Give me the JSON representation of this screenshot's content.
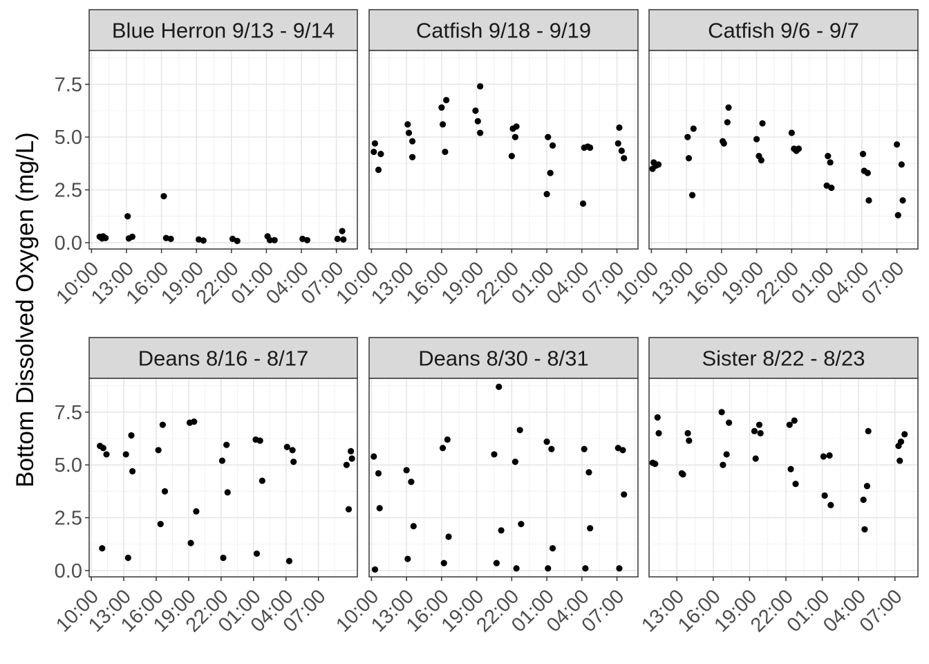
{
  "ylabel": "Bottom Dissolved Oxygen (mg/L)",
  "chart_data": [
    {
      "type": "scatter",
      "title": "Blue Herron 9/13 - 9/14",
      "xlabel": "",
      "ylabel": "Bottom Dissolved Oxygen (mg/L)",
      "x_ticks": [
        "10:00",
        "13:00",
        "16:00",
        "19:00",
        "22:00",
        "01:00",
        "04:00",
        "07:00"
      ],
      "x_range_hours": [
        9.8,
        32.8
      ],
      "y_ticks": [
        "0.0",
        "2.5",
        "5.0",
        "7.5"
      ],
      "ylim": [
        -0.3,
        9.1
      ],
      "grid": true,
      "points": [
        {
          "x": 10.7,
          "y": 0.28
        },
        {
          "x": 10.9,
          "y": 0.2
        },
        {
          "x": 11.0,
          "y": 0.3
        },
        {
          "x": 11.2,
          "y": 0.22
        },
        {
          "x": 13.1,
          "y": 1.25
        },
        {
          "x": 13.2,
          "y": 0.2
        },
        {
          "x": 13.5,
          "y": 0.28
        },
        {
          "x": 16.2,
          "y": 2.2
        },
        {
          "x": 16.4,
          "y": 0.22
        },
        {
          "x": 16.8,
          "y": 0.18
        },
        {
          "x": 19.2,
          "y": 0.15
        },
        {
          "x": 19.6,
          "y": 0.1
        },
        {
          "x": 22.1,
          "y": 0.18
        },
        {
          "x": 22.5,
          "y": 0.08
        },
        {
          "x": 25.1,
          "y": 0.3
        },
        {
          "x": 25.3,
          "y": 0.12
        },
        {
          "x": 25.7,
          "y": 0.12
        },
        {
          "x": 28.1,
          "y": 0.18
        },
        {
          "x": 28.5,
          "y": 0.12
        },
        {
          "x": 31.1,
          "y": 0.18
        },
        {
          "x": 31.5,
          "y": 0.55
        },
        {
          "x": 31.6,
          "y": 0.15
        }
      ]
    },
    {
      "type": "scatter",
      "title": "Catfish 9/18 - 9/19",
      "xlabel": "",
      "ylabel": "",
      "x_ticks": [
        "10:00",
        "13:00",
        "16:00",
        "19:00",
        "22:00",
        "01:00",
        "04:00",
        "07:00"
      ],
      "x_range_hours": [
        9.8,
        32.8
      ],
      "y_ticks": [
        "0.0",
        "2.5",
        "5.0",
        "7.5"
      ],
      "ylim": [
        -0.3,
        9.1
      ],
      "grid": true,
      "points": [
        {
          "x": 10.2,
          "y": 4.3
        },
        {
          "x": 10.3,
          "y": 4.7
        },
        {
          "x": 10.6,
          "y": 3.45
        },
        {
          "x": 10.8,
          "y": 4.2
        },
        {
          "x": 13.1,
          "y": 5.6
        },
        {
          "x": 13.2,
          "y": 5.2
        },
        {
          "x": 13.5,
          "y": 4.8
        },
        {
          "x": 13.5,
          "y": 4.05
        },
        {
          "x": 16.0,
          "y": 6.4
        },
        {
          "x": 16.1,
          "y": 5.6
        },
        {
          "x": 16.3,
          "y": 4.3
        },
        {
          "x": 16.4,
          "y": 6.75
        },
        {
          "x": 18.9,
          "y": 6.25
        },
        {
          "x": 19.1,
          "y": 5.75
        },
        {
          "x": 19.3,
          "y": 7.4
        },
        {
          "x": 19.3,
          "y": 5.2
        },
        {
          "x": 22.0,
          "y": 4.1
        },
        {
          "x": 22.1,
          "y": 5.4
        },
        {
          "x": 22.3,
          "y": 5.0
        },
        {
          "x": 22.4,
          "y": 5.5
        },
        {
          "x": 25.0,
          "y": 2.3
        },
        {
          "x": 25.1,
          "y": 5.0
        },
        {
          "x": 25.3,
          "y": 3.3
        },
        {
          "x": 25.5,
          "y": 4.6
        },
        {
          "x": 28.1,
          "y": 1.85
        },
        {
          "x": 28.2,
          "y": 4.5
        },
        {
          "x": 28.5,
          "y": 4.55
        },
        {
          "x": 28.7,
          "y": 4.5
        },
        {
          "x": 31.1,
          "y": 4.7
        },
        {
          "x": 31.2,
          "y": 5.45
        },
        {
          "x": 31.4,
          "y": 4.35
        },
        {
          "x": 31.6,
          "y": 4.0
        }
      ]
    },
    {
      "type": "scatter",
      "title": "Catfish 9/6 - 9/7",
      "xlabel": "",
      "ylabel": "",
      "x_ticks": [
        "10:00",
        "13:00",
        "16:00",
        "19:00",
        "22:00",
        "01:00",
        "04:00",
        "07:00"
      ],
      "x_range_hours": [
        9.8,
        32.8
      ],
      "y_ticks": [
        "0.0",
        "2.5",
        "5.0",
        "7.5"
      ],
      "ylim": [
        -0.3,
        9.1
      ],
      "grid": true,
      "points": [
        {
          "x": 10.1,
          "y": 3.5
        },
        {
          "x": 10.2,
          "y": 3.8
        },
        {
          "x": 10.4,
          "y": 3.65
        },
        {
          "x": 10.6,
          "y": 3.7
        },
        {
          "x": 13.1,
          "y": 5.0
        },
        {
          "x": 13.2,
          "y": 4.0
        },
        {
          "x": 13.5,
          "y": 2.25
        },
        {
          "x": 13.6,
          "y": 5.4
        },
        {
          "x": 16.1,
          "y": 4.8
        },
        {
          "x": 16.2,
          "y": 4.7
        },
        {
          "x": 16.5,
          "y": 5.7
        },
        {
          "x": 16.6,
          "y": 6.4
        },
        {
          "x": 19.0,
          "y": 4.9
        },
        {
          "x": 19.2,
          "y": 4.1
        },
        {
          "x": 19.4,
          "y": 3.9
        },
        {
          "x": 19.5,
          "y": 5.65
        },
        {
          "x": 22.0,
          "y": 5.2
        },
        {
          "x": 22.2,
          "y": 4.45
        },
        {
          "x": 22.4,
          "y": 4.35
        },
        {
          "x": 22.6,
          "y": 4.45
        },
        {
          "x": 25.0,
          "y": 2.7
        },
        {
          "x": 25.1,
          "y": 4.1
        },
        {
          "x": 25.3,
          "y": 3.8
        },
        {
          "x": 25.4,
          "y": 2.6
        },
        {
          "x": 28.1,
          "y": 4.2
        },
        {
          "x": 28.2,
          "y": 3.4
        },
        {
          "x": 28.5,
          "y": 3.3
        },
        {
          "x": 28.6,
          "y": 2.0
        },
        {
          "x": 31.0,
          "y": 4.65
        },
        {
          "x": 31.1,
          "y": 1.3
        },
        {
          "x": 31.4,
          "y": 3.7
        },
        {
          "x": 31.5,
          "y": 2.0
        }
      ]
    },
    {
      "type": "scatter",
      "title": "Deans 8/16 - 8/17",
      "xlabel": "",
      "ylabel": "",
      "x_ticks": [
        "10:00",
        "13:00",
        "16:00",
        "19:00",
        "22:00",
        "01:00",
        "04:00",
        "07:00"
      ],
      "x_range_hours": [
        9.8,
        34.6
      ],
      "y_ticks": [
        "0.0",
        "2.5",
        "5.0",
        "7.5"
      ],
      "ylim": [
        -0.3,
        9.1
      ],
      "grid": true,
      "points": [
        {
          "x": 10.8,
          "y": 5.9
        },
        {
          "x": 11.0,
          "y": 1.05
        },
        {
          "x": 11.1,
          "y": 5.8
        },
        {
          "x": 11.4,
          "y": 5.5
        },
        {
          "x": 13.2,
          "y": 5.5
        },
        {
          "x": 13.4,
          "y": 0.6
        },
        {
          "x": 13.7,
          "y": 6.4
        },
        {
          "x": 13.8,
          "y": 4.7
        },
        {
          "x": 16.2,
          "y": 5.7
        },
        {
          "x": 16.4,
          "y": 2.2
        },
        {
          "x": 16.6,
          "y": 6.9
        },
        {
          "x": 16.8,
          "y": 3.75
        },
        {
          "x": 19.1,
          "y": 7.0
        },
        {
          "x": 19.2,
          "y": 1.3
        },
        {
          "x": 19.5,
          "y": 7.05
        },
        {
          "x": 19.7,
          "y": 2.8
        },
        {
          "x": 22.1,
          "y": 5.2
        },
        {
          "x": 22.2,
          "y": 0.6
        },
        {
          "x": 22.5,
          "y": 5.95
        },
        {
          "x": 22.6,
          "y": 3.7
        },
        {
          "x": 25.2,
          "y": 6.2
        },
        {
          "x": 25.3,
          "y": 0.8
        },
        {
          "x": 25.6,
          "y": 6.15
        },
        {
          "x": 25.8,
          "y": 4.25
        },
        {
          "x": 28.1,
          "y": 5.85
        },
        {
          "x": 28.3,
          "y": 0.45
        },
        {
          "x": 28.6,
          "y": 5.7
        },
        {
          "x": 28.7,
          "y": 5.15
        },
        {
          "x": 33.6,
          "y": 5.0
        },
        {
          "x": 33.8,
          "y": 2.9
        },
        {
          "x": 34.0,
          "y": 5.65
        },
        {
          "x": 34.1,
          "y": 5.3
        }
      ]
    },
    {
      "type": "scatter",
      "title": "Deans 8/30 - 8/31",
      "xlabel": "",
      "ylabel": "",
      "x_ticks": [
        "10:00",
        "13:00",
        "16:00",
        "19:00",
        "22:00",
        "01:00",
        "04:00",
        "07:00"
      ],
      "x_range_hours": [
        9.8,
        32.8
      ],
      "y_ticks": [
        "0.0",
        "2.5",
        "5.0",
        "7.5"
      ],
      "ylim": [
        -0.3,
        9.1
      ],
      "grid": true,
      "points": [
        {
          "x": 10.2,
          "y": 5.4
        },
        {
          "x": 10.3,
          "y": 0.05
        },
        {
          "x": 10.6,
          "y": 4.6
        },
        {
          "x": 10.7,
          "y": 2.95
        },
        {
          "x": 13.0,
          "y": 4.75
        },
        {
          "x": 13.1,
          "y": 0.55
        },
        {
          "x": 13.4,
          "y": 4.2
        },
        {
          "x": 13.6,
          "y": 2.1
        },
        {
          "x": 16.1,
          "y": 5.8
        },
        {
          "x": 16.2,
          "y": 0.35
        },
        {
          "x": 16.5,
          "y": 6.2
        },
        {
          "x": 16.6,
          "y": 1.6
        },
        {
          "x": 20.5,
          "y": 5.5
        },
        {
          "x": 20.7,
          "y": 0.35
        },
        {
          "x": 20.9,
          "y": 8.7
        },
        {
          "x": 21.1,
          "y": 1.9
        },
        {
          "x": 22.3,
          "y": 5.15
        },
        {
          "x": 22.4,
          "y": 0.1
        },
        {
          "x": 22.7,
          "y": 6.65
        },
        {
          "x": 22.8,
          "y": 2.2
        },
        {
          "x": 25.0,
          "y": 6.1
        },
        {
          "x": 25.1,
          "y": 0.1
        },
        {
          "x": 25.4,
          "y": 5.75
        },
        {
          "x": 25.5,
          "y": 1.05
        },
        {
          "x": 28.2,
          "y": 5.75
        },
        {
          "x": 28.3,
          "y": 0.1
        },
        {
          "x": 28.6,
          "y": 4.65
        },
        {
          "x": 28.7,
          "y": 2.0
        },
        {
          "x": 31.1,
          "y": 5.8
        },
        {
          "x": 31.2,
          "y": 0.1
        },
        {
          "x": 31.5,
          "y": 5.7
        },
        {
          "x": 31.6,
          "y": 3.6
        }
      ]
    },
    {
      "type": "scatter",
      "title": "Sister 8/22 - 8/23",
      "xlabel": "",
      "ylabel": "",
      "x_ticks": [
        "13:00",
        "16:00",
        "19:00",
        "22:00",
        "01:00",
        "04:00",
        "07:00"
      ],
      "x_range_hours": [
        10.7,
        32.9
      ],
      "y_ticks": [
        "0.0",
        "2.5",
        "5.0",
        "7.5"
      ],
      "ylim": [
        -0.3,
        9.1
      ],
      "grid": true,
      "points": [
        {
          "x": 11.0,
          "y": 5.1
        },
        {
          "x": 11.2,
          "y": 5.05
        },
        {
          "x": 11.4,
          "y": 7.25
        },
        {
          "x": 11.5,
          "y": 6.5
        },
        {
          "x": 13.4,
          "y": 4.6
        },
        {
          "x": 13.5,
          "y": 4.55
        },
        {
          "x": 13.9,
          "y": 6.5
        },
        {
          "x": 14.0,
          "y": 6.15
        },
        {
          "x": 16.7,
          "y": 7.5
        },
        {
          "x": 16.8,
          "y": 5.0
        },
        {
          "x": 17.1,
          "y": 5.5
        },
        {
          "x": 17.3,
          "y": 7.0
        },
        {
          "x": 19.4,
          "y": 6.6
        },
        {
          "x": 19.5,
          "y": 5.3
        },
        {
          "x": 19.8,
          "y": 6.9
        },
        {
          "x": 19.9,
          "y": 6.5
        },
        {
          "x": 22.3,
          "y": 6.9
        },
        {
          "x": 22.4,
          "y": 4.8
        },
        {
          "x": 22.7,
          "y": 7.1
        },
        {
          "x": 22.8,
          "y": 4.1
        },
        {
          "x": 25.1,
          "y": 5.4
        },
        {
          "x": 25.2,
          "y": 3.55
        },
        {
          "x": 25.6,
          "y": 5.45
        },
        {
          "x": 25.7,
          "y": 3.1
        },
        {
          "x": 28.4,
          "y": 3.35
        },
        {
          "x": 28.5,
          "y": 1.95
        },
        {
          "x": 28.7,
          "y": 4.0
        },
        {
          "x": 28.8,
          "y": 6.6
        },
        {
          "x": 31.3,
          "y": 5.9
        },
        {
          "x": 31.4,
          "y": 5.2
        },
        {
          "x": 31.5,
          "y": 6.1
        },
        {
          "x": 31.8,
          "y": 6.45
        }
      ]
    }
  ]
}
